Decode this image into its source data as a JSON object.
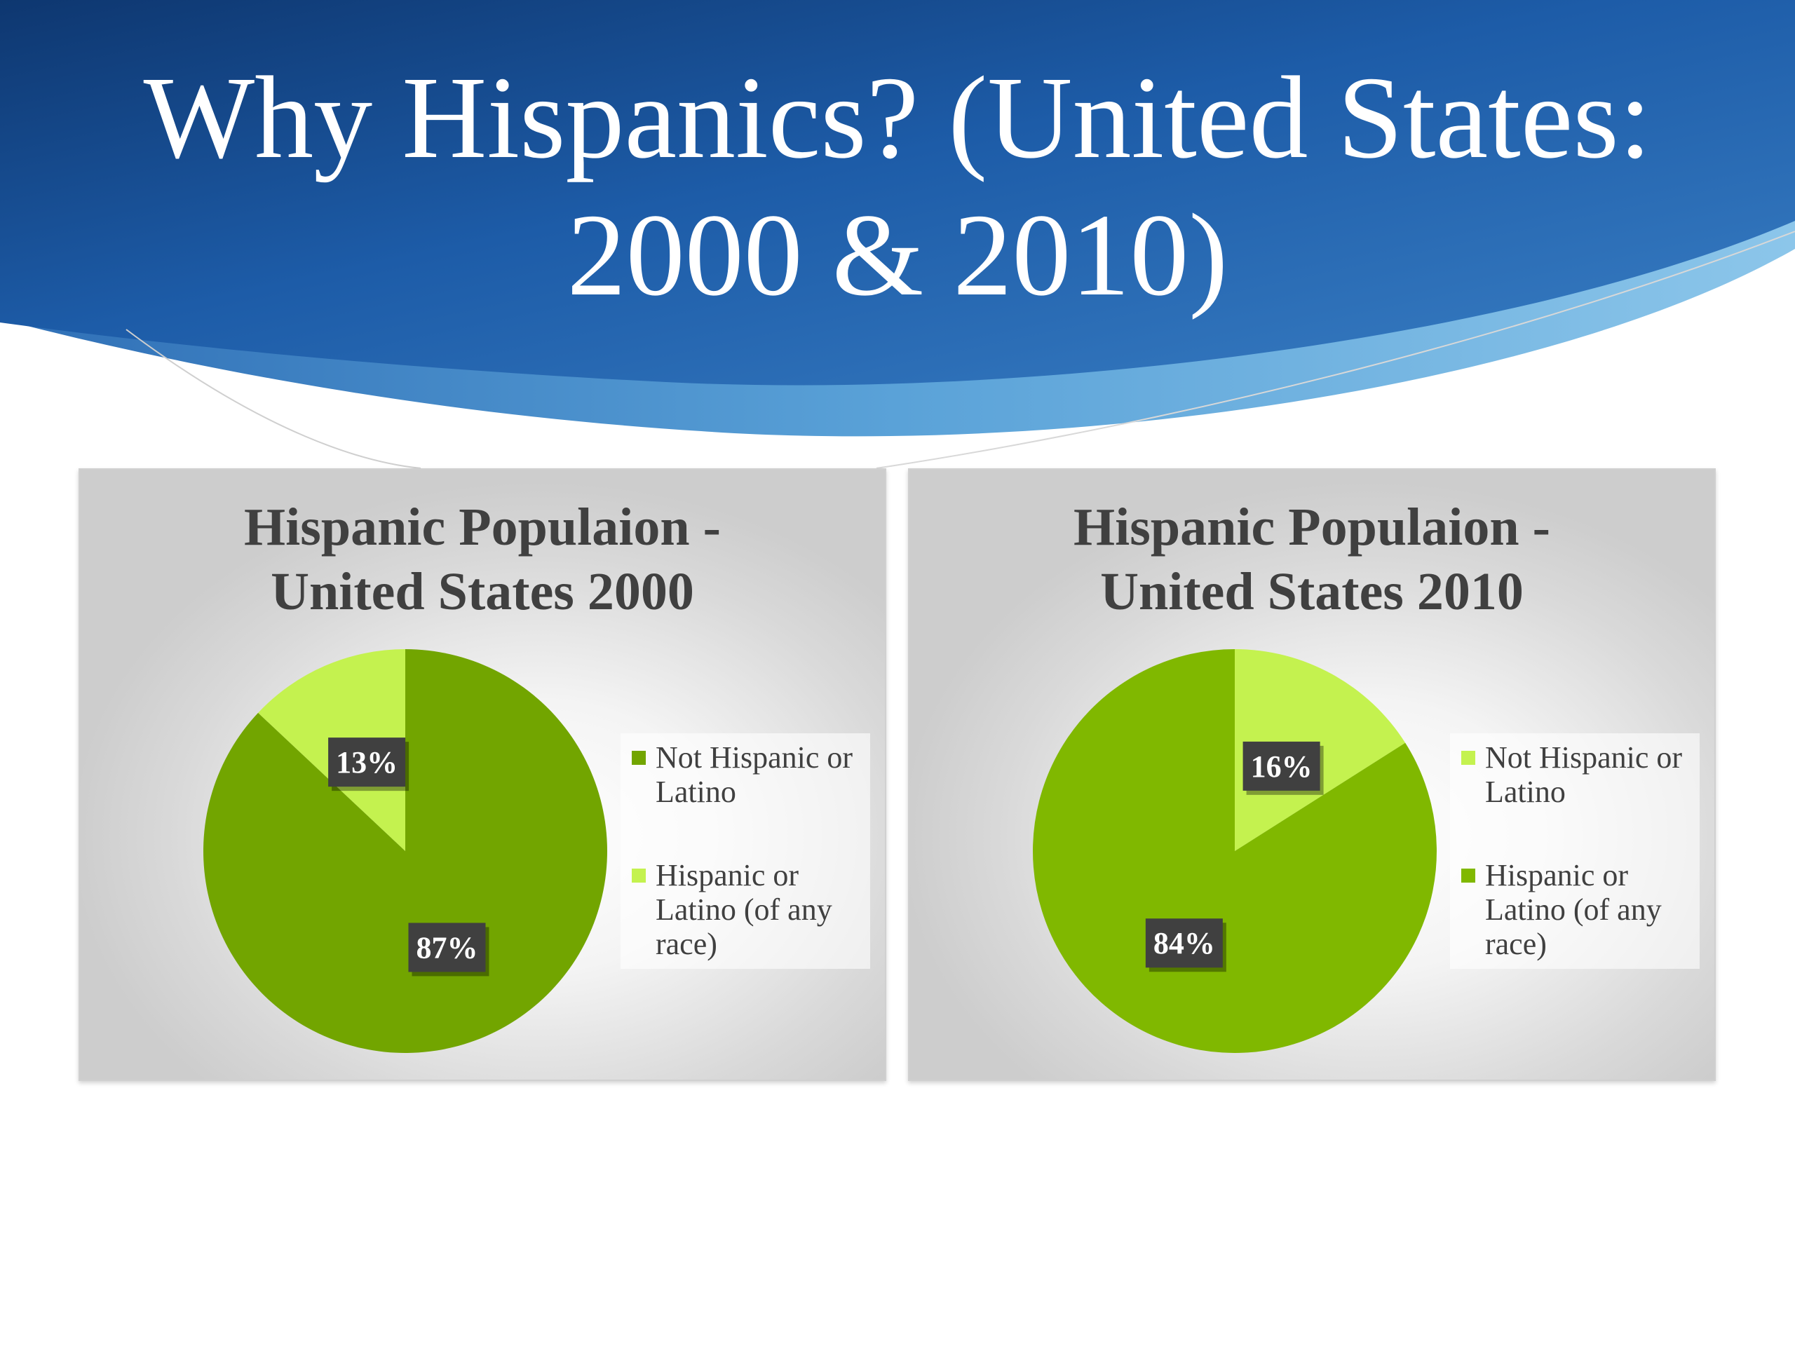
{
  "slide": {
    "title_line1": "Why Hispanics? (United States:",
    "title_line2": "2000 & 2010)",
    "banner_colors": {
      "dark": "#0e3770",
      "mid": "#1d5ca8",
      "light": "#4d93d0"
    }
  },
  "chart_data": [
    {
      "type": "pie",
      "title_line1": "Hispanic Populaion -",
      "title_line2": "United States 2000",
      "title": "Hispanic Populaion - United States 2000",
      "series": [
        {
          "name": "Not Hispanic or Latino",
          "value": 87,
          "label": "87%",
          "color": "#72a500"
        },
        {
          "name": "Hispanic or Latino (of any race)",
          "value": 13,
          "label": "13%",
          "color": "#c4f24f"
        }
      ],
      "legend_placement": "right",
      "legend_items": [
        {
          "line1": "Not Hispanic or",
          "line2": "Latino",
          "color": "#72a500"
        },
        {
          "line1": "Hispanic or",
          "line2": "Latino (of any",
          "line3": "race)",
          "color": "#c4f24f"
        }
      ]
    },
    {
      "type": "pie",
      "title_line1": "Hispanic Populaion -",
      "title_line2": "United States 2010",
      "title": "Hispanic Populaion - United States 2010",
      "series": [
        {
          "name": "Hispanic or Latino (of any race)",
          "value": 84,
          "label": "84%",
          "color": "#80b800"
        },
        {
          "name": "Not Hispanic or Latino",
          "value": 16,
          "label": "16%",
          "color": "#c4f24f"
        }
      ],
      "legend_placement": "right",
      "legend_items": [
        {
          "line1": "Not Hispanic or",
          "line2": "Latino",
          "color": "#c4f24f"
        },
        {
          "line1": "Hispanic or",
          "line2": "Latino (of any",
          "line3": "race)",
          "color": "#80b800"
        }
      ]
    }
  ]
}
